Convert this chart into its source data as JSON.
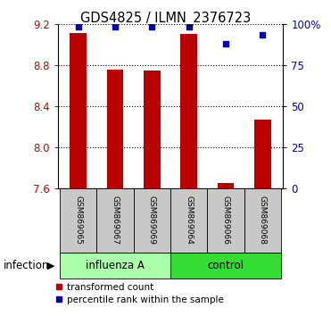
{
  "title": "GDS4825 / ILMN_2376723",
  "samples": [
    "GSM869065",
    "GSM869067",
    "GSM869069",
    "GSM869064",
    "GSM869066",
    "GSM869068"
  ],
  "bar_values": [
    9.11,
    8.75,
    8.74,
    9.1,
    7.65,
    8.27
  ],
  "bar_base": 7.6,
  "percentile_values": [
    98,
    98,
    98,
    98,
    88,
    93
  ],
  "ymin": 7.6,
  "ymax": 9.2,
  "yticks_left": [
    7.6,
    8.0,
    8.4,
    8.8,
    9.2
  ],
  "yticks_right": [
    0,
    25,
    50,
    75,
    100
  ],
  "bar_color": "#BB0000",
  "dot_color": "#0000BB",
  "left_label_color": "#CC0000",
  "right_label_color": "#0000CC",
  "infection_label": "infection",
  "legend_bar_label": "transformed count",
  "legend_dot_label": "percentile rank within the sample",
  "figsize": [
    3.71,
    3.54
  ],
  "dpi": 100,
  "group_spans": [
    {
      "label": "influenza A",
      "start": 0,
      "end": 3,
      "color": "#AAFFAA"
    },
    {
      "label": "control",
      "start": 3,
      "end": 6,
      "color": "#33DD33"
    }
  ]
}
